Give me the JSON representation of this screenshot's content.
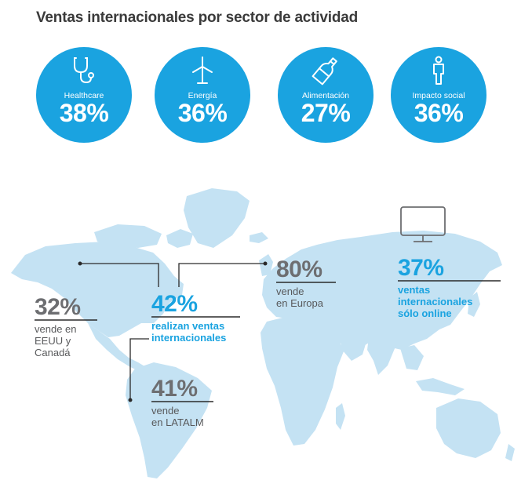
{
  "title": "Ventas internacionales por sector de actividad",
  "colors": {
    "accent": "#1aa3e0",
    "map": "#c4e2f3",
    "text_gray": "#6d6e71",
    "title": "#3a3a3a"
  },
  "chart_data": {
    "type": "infographic",
    "title": "Ventas internacionales por sector de actividad",
    "sectors": [
      {
        "label": "Healthcare",
        "value": 38,
        "display": "38%",
        "icon": "stethoscope-icon"
      },
      {
        "label": "Energía",
        "value": 36,
        "display": "36%",
        "icon": "wind-turbine-icon"
      },
      {
        "label": "Alimentación",
        "value": 27,
        "display": "27%",
        "icon": "bottle-icon"
      },
      {
        "label": "Impacto social",
        "value": 36,
        "display": "36%",
        "icon": "person-icon"
      }
    ],
    "regional_stats": [
      {
        "id": "eeuu",
        "value": 32,
        "display": "32%",
        "lines": [
          "vende en",
          "EEUU y",
          "Canadá"
        ]
      },
      {
        "id": "international",
        "value": 42,
        "display": "42%",
        "lines": [
          "realizan ventas",
          "internacionales"
        ]
      },
      {
        "id": "europa",
        "value": 80,
        "display": "80%",
        "lines": [
          "vende",
          "en Europa"
        ]
      },
      {
        "id": "online",
        "value": 37,
        "display": "37%",
        "lines": [
          "ventas",
          "internacionales",
          "sólo online"
        ],
        "icon": "monitor-icon"
      },
      {
        "id": "latalm",
        "value": 41,
        "display": "41%",
        "lines": [
          "vende",
          "en LATALM"
        ]
      }
    ]
  }
}
